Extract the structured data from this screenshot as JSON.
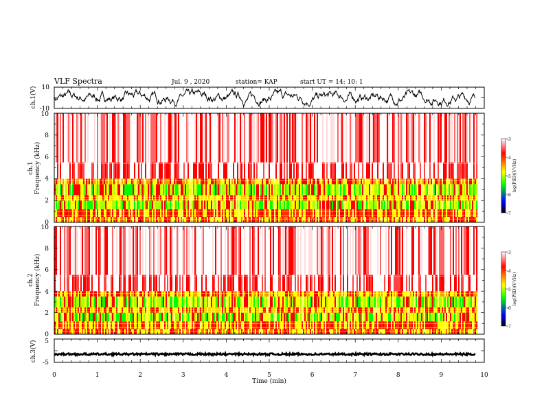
{
  "header": {
    "title": "VLF Spectra",
    "date": "Jul. 9 , 2020",
    "station": "station= KAP",
    "start_ut": "start UT =  14: 10: 1"
  },
  "chart_data": [
    {
      "type": "line",
      "panel": "ch1-waveform",
      "ylabel": "ch.1(V)",
      "ylim": [
        -10,
        10
      ],
      "ytick_labels": [
        "10",
        "-10"
      ],
      "xlim": [
        0,
        10
      ],
      "note_series": "noisy waveform between about -8 V and +8 V"
    },
    {
      "type": "heatmap",
      "panel": "ch1-spectrogram",
      "ylabel_lines": [
        "ch.1",
        "Frequency (kHz)"
      ],
      "ylim": [
        0,
        10
      ],
      "ytick_labels": [
        "0",
        "2",
        "4",
        "6",
        "8",
        "10"
      ],
      "xlim": [
        0,
        10
      ],
      "data_end_min": 9.85,
      "colorbar": {
        "label": "log(PSD)(V²/Hz)",
        "range": [
          -7,
          -3
        ],
        "tick_labels": [
          "-3",
          "-4",
          "-5",
          "-6",
          "-7"
        ],
        "colors": [
          "#ffffff",
          "#ff0000",
          "#ffff00",
          "#00ff00",
          "#0000ff",
          "#000000"
        ]
      },
      "bands": [
        {
          "freq": [
            0,
            1.0
          ],
          "dominant": "red"
        },
        {
          "freq": [
            1.0,
            3.5
          ],
          "dominant": "yellow-green"
        },
        {
          "freq": [
            3.5,
            4.0
          ],
          "dominant": "yellow"
        },
        {
          "freq": [
            4.0,
            10.0
          ],
          "dominant": "red-white"
        }
      ]
    },
    {
      "type": "heatmap",
      "panel": "ch2-spectrogram",
      "ylabel_lines": [
        "ch.2",
        "Frequency (kHz)"
      ],
      "ylim": [
        0,
        10
      ],
      "ytick_labels": [
        "0",
        "2",
        "4",
        "6",
        "8",
        "10"
      ],
      "xlim": [
        0,
        10
      ],
      "data_end_min": 9.85,
      "colorbar": {
        "label": "log(PSD)(V²/Hz)",
        "range": [
          -7,
          -3
        ],
        "tick_labels": [
          "-3",
          "-4",
          "-5",
          "-6",
          "-7"
        ],
        "colors": [
          "#ffffff",
          "#ff0000",
          "#ffff00",
          "#00ff00",
          "#0000ff",
          "#000000"
        ]
      },
      "bands": [
        {
          "freq": [
            0,
            1.0
          ],
          "dominant": "red"
        },
        {
          "freq": [
            1.0,
            3.5
          ],
          "dominant": "yellow-green"
        },
        {
          "freq": [
            3.5,
            4.0
          ],
          "dominant": "yellow"
        },
        {
          "freq": [
            4.0,
            10.0
          ],
          "dominant": "red-white"
        }
      ]
    },
    {
      "type": "line",
      "panel": "ch3-waveform",
      "ylabel": "ch.3(V)",
      "ylim": [
        -5,
        5
      ],
      "ytick_labels": [
        "5",
        "-5"
      ],
      "xlim": [
        0,
        10
      ],
      "xlabel": "Time (min)",
      "xtick_labels": [
        "0",
        "1",
        "2",
        "3",
        "4",
        "5",
        "6",
        "7",
        "8",
        "9",
        "10"
      ],
      "note_series": "near-constant signal around -1.5 V"
    }
  ]
}
